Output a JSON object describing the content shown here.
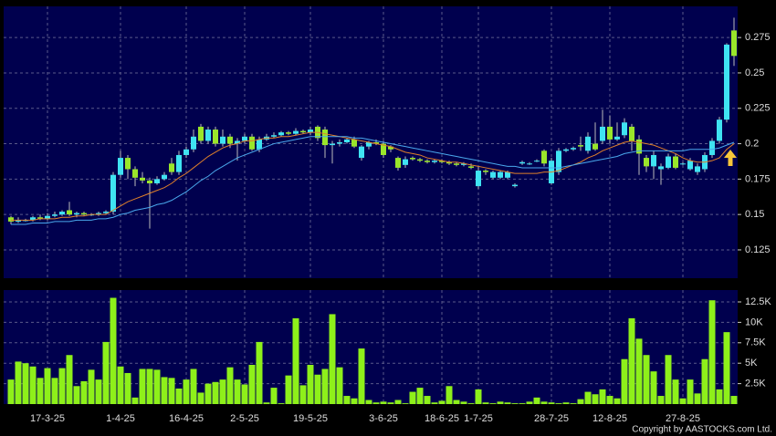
{
  "chart_data": [
    {
      "type": "candlestick",
      "categories": [
        null,
        null,
        null,
        null,
        null,
        "17-3-25",
        null,
        null,
        null,
        null,
        null,
        null,
        null,
        null,
        null,
        "1-4-25",
        null,
        null,
        null,
        null,
        null,
        null,
        null,
        null,
        "16-4-25",
        null,
        null,
        null,
        null,
        null,
        null,
        null,
        "2-5-25",
        null,
        null,
        null,
        null,
        null,
        null,
        null,
        null,
        "19-5-25",
        null,
        null,
        null,
        null,
        null,
        null,
        null,
        null,
        null,
        "3-6-25",
        null,
        null,
        null,
        null,
        null,
        null,
        null,
        "18-6-25",
        null,
        null,
        null,
        null,
        "1-7-25",
        null,
        null,
        null,
        null,
        null,
        null,
        null,
        null,
        null,
        "28-7-25",
        null,
        null,
        null,
        null,
        null,
        null,
        null,
        "12-8-25",
        null,
        null,
        null,
        null,
        null,
        null,
        null,
        null,
        null,
        "27-8-25",
        null,
        null,
        null,
        null,
        null,
        null,
        null
      ],
      "open": [
        0.148,
        0.145,
        0.146,
        0.146,
        0.148,
        0.147,
        0.149,
        0.15,
        0.153,
        0.15,
        0.151,
        0.15,
        0.15,
        0.151,
        0.152,
        0.178,
        0.19,
        0.182,
        0.176,
        0.174,
        0.172,
        0.175,
        0.186,
        0.18,
        0.192,
        0.196,
        0.212,
        0.202,
        0.21,
        0.2,
        0.205,
        0.2,
        0.202,
        0.205,
        0.196,
        0.203,
        0.205,
        0.206,
        0.208,
        0.207,
        0.209,
        0.208,
        0.212,
        0.21,
        0.199,
        0.2,
        0.201,
        0.203,
        0.19,
        0.198,
        0.201,
        0.2,
        0.198,
        0.19,
        0.185,
        0.19,
        0.189,
        0.188,
        0.187,
        0.188,
        0.187,
        0.186,
        0.185,
        0.184,
        0.17,
        0.181,
        0.176,
        0.176,
        0.176,
        0.17,
        0.186,
        0.186,
        0.188,
        0.195,
        0.172,
        0.18,
        0.195,
        0.196,
        0.199,
        0.195,
        0.2,
        0.202,
        0.212,
        0.203,
        0.206,
        0.212,
        0.203,
        0.19,
        0.184,
        0.182,
        0.183,
        0.191,
        0.186,
        0.182,
        0.18,
        0.182,
        0.192,
        0.202,
        0.217,
        0.28
      ],
      "high": [
        0.149,
        0.148,
        0.147,
        0.149,
        0.15,
        0.151,
        0.152,
        0.153,
        0.159,
        0.152,
        0.152,
        0.151,
        0.152,
        0.153,
        0.18,
        0.195,
        0.192,
        0.184,
        0.18,
        0.176,
        0.177,
        0.18,
        0.19,
        0.195,
        0.198,
        0.21,
        0.214,
        0.212,
        0.212,
        0.21,
        0.207,
        0.204,
        0.207,
        0.207,
        0.205,
        0.207,
        0.208,
        0.209,
        0.209,
        0.211,
        0.21,
        0.212,
        0.213,
        0.212,
        0.202,
        0.203,
        0.204,
        0.205,
        0.199,
        0.202,
        0.203,
        0.202,
        0.199,
        0.191,
        0.191,
        0.191,
        0.19,
        0.189,
        0.189,
        0.189,
        0.188,
        0.187,
        0.187,
        0.186,
        0.184,
        0.182,
        0.181,
        0.181,
        0.181,
        0.172,
        0.188,
        0.187,
        0.189,
        0.196,
        0.19,
        0.197,
        0.197,
        0.198,
        0.205,
        0.208,
        0.215,
        0.224,
        0.22,
        0.215,
        0.218,
        0.214,
        0.206,
        0.192,
        0.195,
        0.186,
        0.193,
        0.193,
        0.187,
        0.19,
        0.186,
        0.194,
        0.204,
        0.219,
        0.271,
        0.289
      ],
      "low": [
        0.143,
        0.144,
        0.145,
        0.145,
        0.146,
        0.146,
        0.148,
        0.149,
        0.149,
        0.148,
        0.149,
        0.149,
        0.149,
        0.15,
        0.15,
        0.176,
        0.175,
        0.17,
        0.172,
        0.14,
        0.171,
        0.174,
        0.178,
        0.178,
        0.19,
        0.194,
        0.2,
        0.2,
        0.198,
        0.198,
        0.197,
        0.188,
        0.2,
        0.195,
        0.194,
        0.202,
        0.204,
        0.205,
        0.206,
        0.206,
        0.207,
        0.206,
        0.202,
        0.19,
        0.186,
        0.198,
        0.2,
        0.197,
        0.188,
        0.196,
        0.199,
        0.19,
        0.194,
        0.181,
        0.183,
        0.188,
        0.187,
        0.186,
        0.186,
        0.186,
        0.185,
        0.184,
        0.184,
        0.182,
        0.168,
        0.178,
        0.175,
        0.175,
        0.175,
        0.169,
        0.185,
        0.185,
        0.187,
        0.184,
        0.171,
        0.178,
        0.194,
        0.195,
        0.195,
        0.193,
        0.195,
        0.2,
        0.2,
        0.202,
        0.204,
        0.195,
        0.178,
        0.18,
        0.175,
        0.171,
        0.182,
        0.182,
        0.185,
        0.181,
        0.178,
        0.18,
        0.19,
        0.2,
        0.215,
        0.255
      ],
      "close": [
        0.145,
        0.146,
        0.146,
        0.148,
        0.147,
        0.149,
        0.15,
        0.152,
        0.15,
        0.151,
        0.15,
        0.15,
        0.151,
        0.152,
        0.178,
        0.19,
        0.182,
        0.176,
        0.174,
        0.172,
        0.175,
        0.178,
        0.18,
        0.192,
        0.196,
        0.205,
        0.202,
        0.21,
        0.2,
        0.205,
        0.2,
        0.202,
        0.205,
        0.196,
        0.203,
        0.205,
        0.206,
        0.208,
        0.207,
        0.209,
        0.208,
        0.21,
        0.204,
        0.199,
        0.2,
        0.201,
        0.203,
        0.198,
        0.198,
        0.201,
        0.2,
        0.192,
        0.196,
        0.183,
        0.189,
        0.189,
        0.188,
        0.187,
        0.188,
        0.187,
        0.186,
        0.185,
        0.186,
        0.183,
        0.181,
        0.18,
        0.18,
        0.18,
        0.18,
        0.171,
        0.187,
        0.186,
        0.188,
        0.186,
        0.188,
        0.195,
        0.196,
        0.197,
        0.198,
        0.205,
        0.196,
        0.212,
        0.203,
        0.205,
        0.215,
        0.202,
        0.193,
        0.184,
        0.192,
        0.184,
        0.191,
        0.183,
        0.186,
        0.188,
        0.184,
        0.192,
        0.202,
        0.217,
        0.27,
        0.262
      ],
      "up_color": "#3fe3f2",
      "down_color": "#9ae62a",
      "lines": [
        {
          "color": "#e0802a",
          "values": [
            0.146,
            0.146,
            0.146,
            0.146,
            0.147,
            0.147,
            0.147,
            0.148,
            0.148,
            0.149,
            0.149,
            0.15,
            0.15,
            0.15,
            0.153,
            0.156,
            0.159,
            0.161,
            0.163,
            0.165,
            0.167,
            0.169,
            0.172,
            0.176,
            0.179,
            0.183,
            0.187,
            0.191,
            0.194,
            0.197,
            0.199,
            0.2,
            0.202,
            0.202,
            0.203,
            0.204,
            0.204,
            0.205,
            0.205,
            0.206,
            0.207,
            0.208,
            0.208,
            0.207,
            0.206,
            0.205,
            0.204,
            0.203,
            0.202,
            0.201,
            0.2,
            0.199,
            0.198,
            0.196,
            0.194,
            0.193,
            0.192,
            0.19,
            0.189,
            0.188,
            0.187,
            0.187,
            0.186,
            0.185,
            0.184,
            0.183,
            0.182,
            0.181,
            0.18,
            0.179,
            0.179,
            0.179,
            0.179,
            0.18,
            0.18,
            0.181,
            0.183,
            0.185,
            0.187,
            0.19,
            0.192,
            0.195,
            0.197,
            0.199,
            0.201,
            0.202,
            0.201,
            0.2,
            0.199,
            0.197,
            0.195,
            0.193,
            0.19,
            0.188,
            0.187,
            0.187,
            0.188,
            0.19,
            0.196,
            0.2
          ]
        },
        {
          "color": "#4aa8ec",
          "values": [
            0.143,
            0.143,
            0.143,
            0.144,
            0.144,
            0.144,
            0.145,
            0.145,
            0.145,
            0.146,
            0.146,
            0.146,
            0.147,
            0.147,
            0.148,
            0.15,
            0.151,
            0.153,
            0.154,
            0.155,
            0.157,
            0.158,
            0.16,
            0.163,
            0.166,
            0.17,
            0.174,
            0.177,
            0.181,
            0.184,
            0.187,
            0.19,
            0.192,
            0.194,
            0.196,
            0.198,
            0.2,
            0.201,
            0.202,
            0.203,
            0.204,
            0.205,
            0.205,
            0.205,
            0.205,
            0.205,
            0.205,
            0.204,
            0.204,
            0.203,
            0.202,
            0.201,
            0.2,
            0.199,
            0.198,
            0.197,
            0.196,
            0.195,
            0.194,
            0.193,
            0.192,
            0.191,
            0.19,
            0.189,
            0.188,
            0.187,
            0.186,
            0.185,
            0.184,
            0.184,
            0.183,
            0.183,
            0.183,
            0.183,
            0.183,
            0.183,
            0.184,
            0.185,
            0.186,
            0.187,
            0.188,
            0.189,
            0.19,
            0.191,
            0.193,
            0.194,
            0.195,
            0.195,
            0.195,
            0.195,
            0.195,
            0.195,
            0.195,
            0.196,
            0.196,
            0.196,
            0.196,
            0.197,
            0.199,
            0.201
          ]
        }
      ],
      "ylim": [
        0.105,
        0.297
      ],
      "yticks": [
        0.125,
        0.15,
        0.175,
        0.2,
        0.225,
        0.25,
        0.275
      ],
      "grid": true
    },
    {
      "type": "bar",
      "values": [
        3000,
        5200,
        5000,
        4600,
        3200,
        4400,
        3200,
        4400,
        6000,
        2200,
        2800,
        4200,
        3000,
        7600,
        13000,
        4600,
        3800,
        800,
        4300,
        4300,
        4200,
        3300,
        3200,
        1900,
        3000,
        4300,
        1400,
        2500,
        2700,
        3000,
        4500,
        3000,
        2400,
        4800,
        7600,
        200,
        2000,
        100,
        3500,
        10500,
        2300,
        4800,
        3600,
        4300,
        11000,
        4500,
        1000,
        700,
        6800,
        500,
        200,
        300,
        200,
        500,
        100,
        1500,
        2000,
        1000,
        200,
        400,
        2200,
        500,
        300,
        100,
        1800,
        200,
        100,
        300,
        200,
        100,
        100,
        300,
        800,
        300,
        200,
        100,
        200,
        100,
        600,
        1500,
        1200,
        1800,
        1000,
        700,
        5500,
        10500,
        8000,
        6000,
        4000,
        1000,
        6000,
        3000,
        700,
        3000,
        1300,
        5500,
        12700,
        1800,
        8800,
        1000
      ],
      "color": "#8ef01a",
      "ylim": [
        0,
        13950
      ],
      "yticks": [
        {
          "value": 2500,
          "label": "2.5K"
        },
        {
          "value": 5000,
          "label": "5K"
        },
        {
          "value": 7500,
          "label": "7.5K"
        },
        {
          "value": 10000,
          "label": "10K"
        },
        {
          "value": 12500,
          "label": "12.5K"
        }
      ],
      "grid": true
    }
  ],
  "footer": "Copyright by AASTOCKS.com Ltd."
}
